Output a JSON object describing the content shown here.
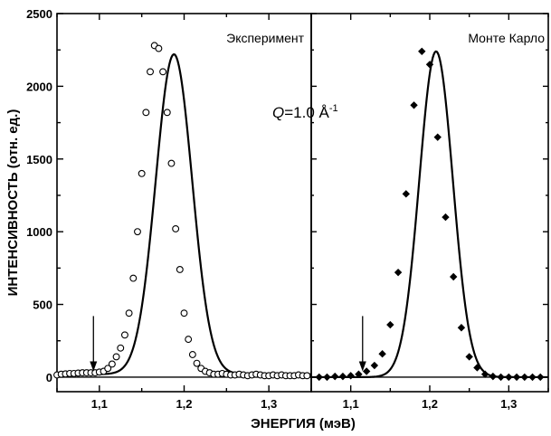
{
  "chart_data": [
    {
      "type": "scatter",
      "panel_label": "Эксперимент",
      "marker": "open-circle",
      "ylabel": "ИНТЕНСИВНОСТЬ (отн. ед.)",
      "xlabel": "ЭНЕРГИЯ (мэВ)",
      "xlim": [
        1.05,
        1.35
      ],
      "ylim": [
        -100,
        2500
      ],
      "x_ticks": [
        1.1,
        1.2,
        1.3
      ],
      "x_tick_labels": [
        "1,1",
        "1,2",
        "1,3"
      ],
      "y_ticks": [
        0,
        500,
        1000,
        1500,
        2000,
        2500
      ],
      "y_tick_labels": [
        "0",
        "500",
        "1000",
        "1500",
        "2000",
        "2500"
      ],
      "arrow_x": 1.093,
      "baseline_y": 0,
      "fit_curve": {
        "amplitude": 2200,
        "center": 1.188,
        "sigma": 0.0215,
        "offset": 20
      },
      "points": {
        "x": [
          1.05,
          1.055,
          1.06,
          1.065,
          1.07,
          1.075,
          1.08,
          1.085,
          1.09,
          1.095,
          1.1,
          1.105,
          1.11,
          1.115,
          1.12,
          1.125,
          1.13,
          1.135,
          1.14,
          1.145,
          1.15,
          1.155,
          1.16,
          1.165,
          1.17,
          1.175,
          1.18,
          1.185,
          1.19,
          1.195,
          1.2,
          1.205,
          1.21,
          1.215,
          1.22,
          1.225,
          1.23,
          1.235,
          1.24,
          1.245,
          1.25,
          1.255,
          1.26,
          1.265,
          1.27,
          1.275,
          1.28,
          1.285,
          1.29,
          1.295,
          1.3,
          1.305,
          1.31,
          1.315,
          1.32,
          1.325,
          1.33,
          1.335,
          1.34,
          1.345
        ],
        "y": [
          15,
          20,
          22,
          25,
          25,
          28,
          30,
          30,
          30,
          30,
          35,
          40,
          60,
          90,
          140,
          200,
          290,
          440,
          680,
          1000,
          1400,
          1820,
          2100,
          2280,
          2260,
          2100,
          1820,
          1470,
          1020,
          740,
          440,
          260,
          155,
          95,
          60,
          40,
          30,
          20,
          20,
          25,
          20,
          15,
          15,
          20,
          15,
          10,
          15,
          20,
          15,
          10,
          10,
          15,
          10,
          15,
          10,
          10,
          10,
          15,
          10,
          10
        ]
      }
    },
    {
      "type": "scatter",
      "panel_label": "Монте Карло",
      "marker": "filled-diamond",
      "xlim": [
        1.05,
        1.35
      ],
      "ylim": [
        -100,
        2500
      ],
      "x_ticks": [
        1.1,
        1.2,
        1.3
      ],
      "x_tick_labels": [
        "1,1",
        "1,2",
        "1,3"
      ],
      "arrow_x": 1.115,
      "baseline_y": 0,
      "fit_curve": {
        "amplitude": 2240,
        "center": 1.208,
        "sigma": 0.0212,
        "offset": 0
      },
      "points": {
        "x": [
          1.06,
          1.07,
          1.08,
          1.09,
          1.1,
          1.11,
          1.12,
          1.13,
          1.14,
          1.15,
          1.16,
          1.17,
          1.18,
          1.19,
          1.2,
          1.21,
          1.22,
          1.23,
          1.24,
          1.25,
          1.26,
          1.27,
          1.28,
          1.29,
          1.3,
          1.31,
          1.32,
          1.33,
          1.34
        ],
        "y": [
          0,
          0,
          5,
          5,
          10,
          20,
          40,
          80,
          160,
          360,
          720,
          1260,
          1870,
          2240,
          2150,
          1650,
          1100,
          690,
          340,
          140,
          65,
          20,
          5,
          0,
          0,
          0,
          0,
          0,
          0
        ]
      }
    }
  ],
  "shared": {
    "q_label_prefix": "Q",
    "q_label_value": "=1.0 Å",
    "q_label_exp": "-1"
  }
}
